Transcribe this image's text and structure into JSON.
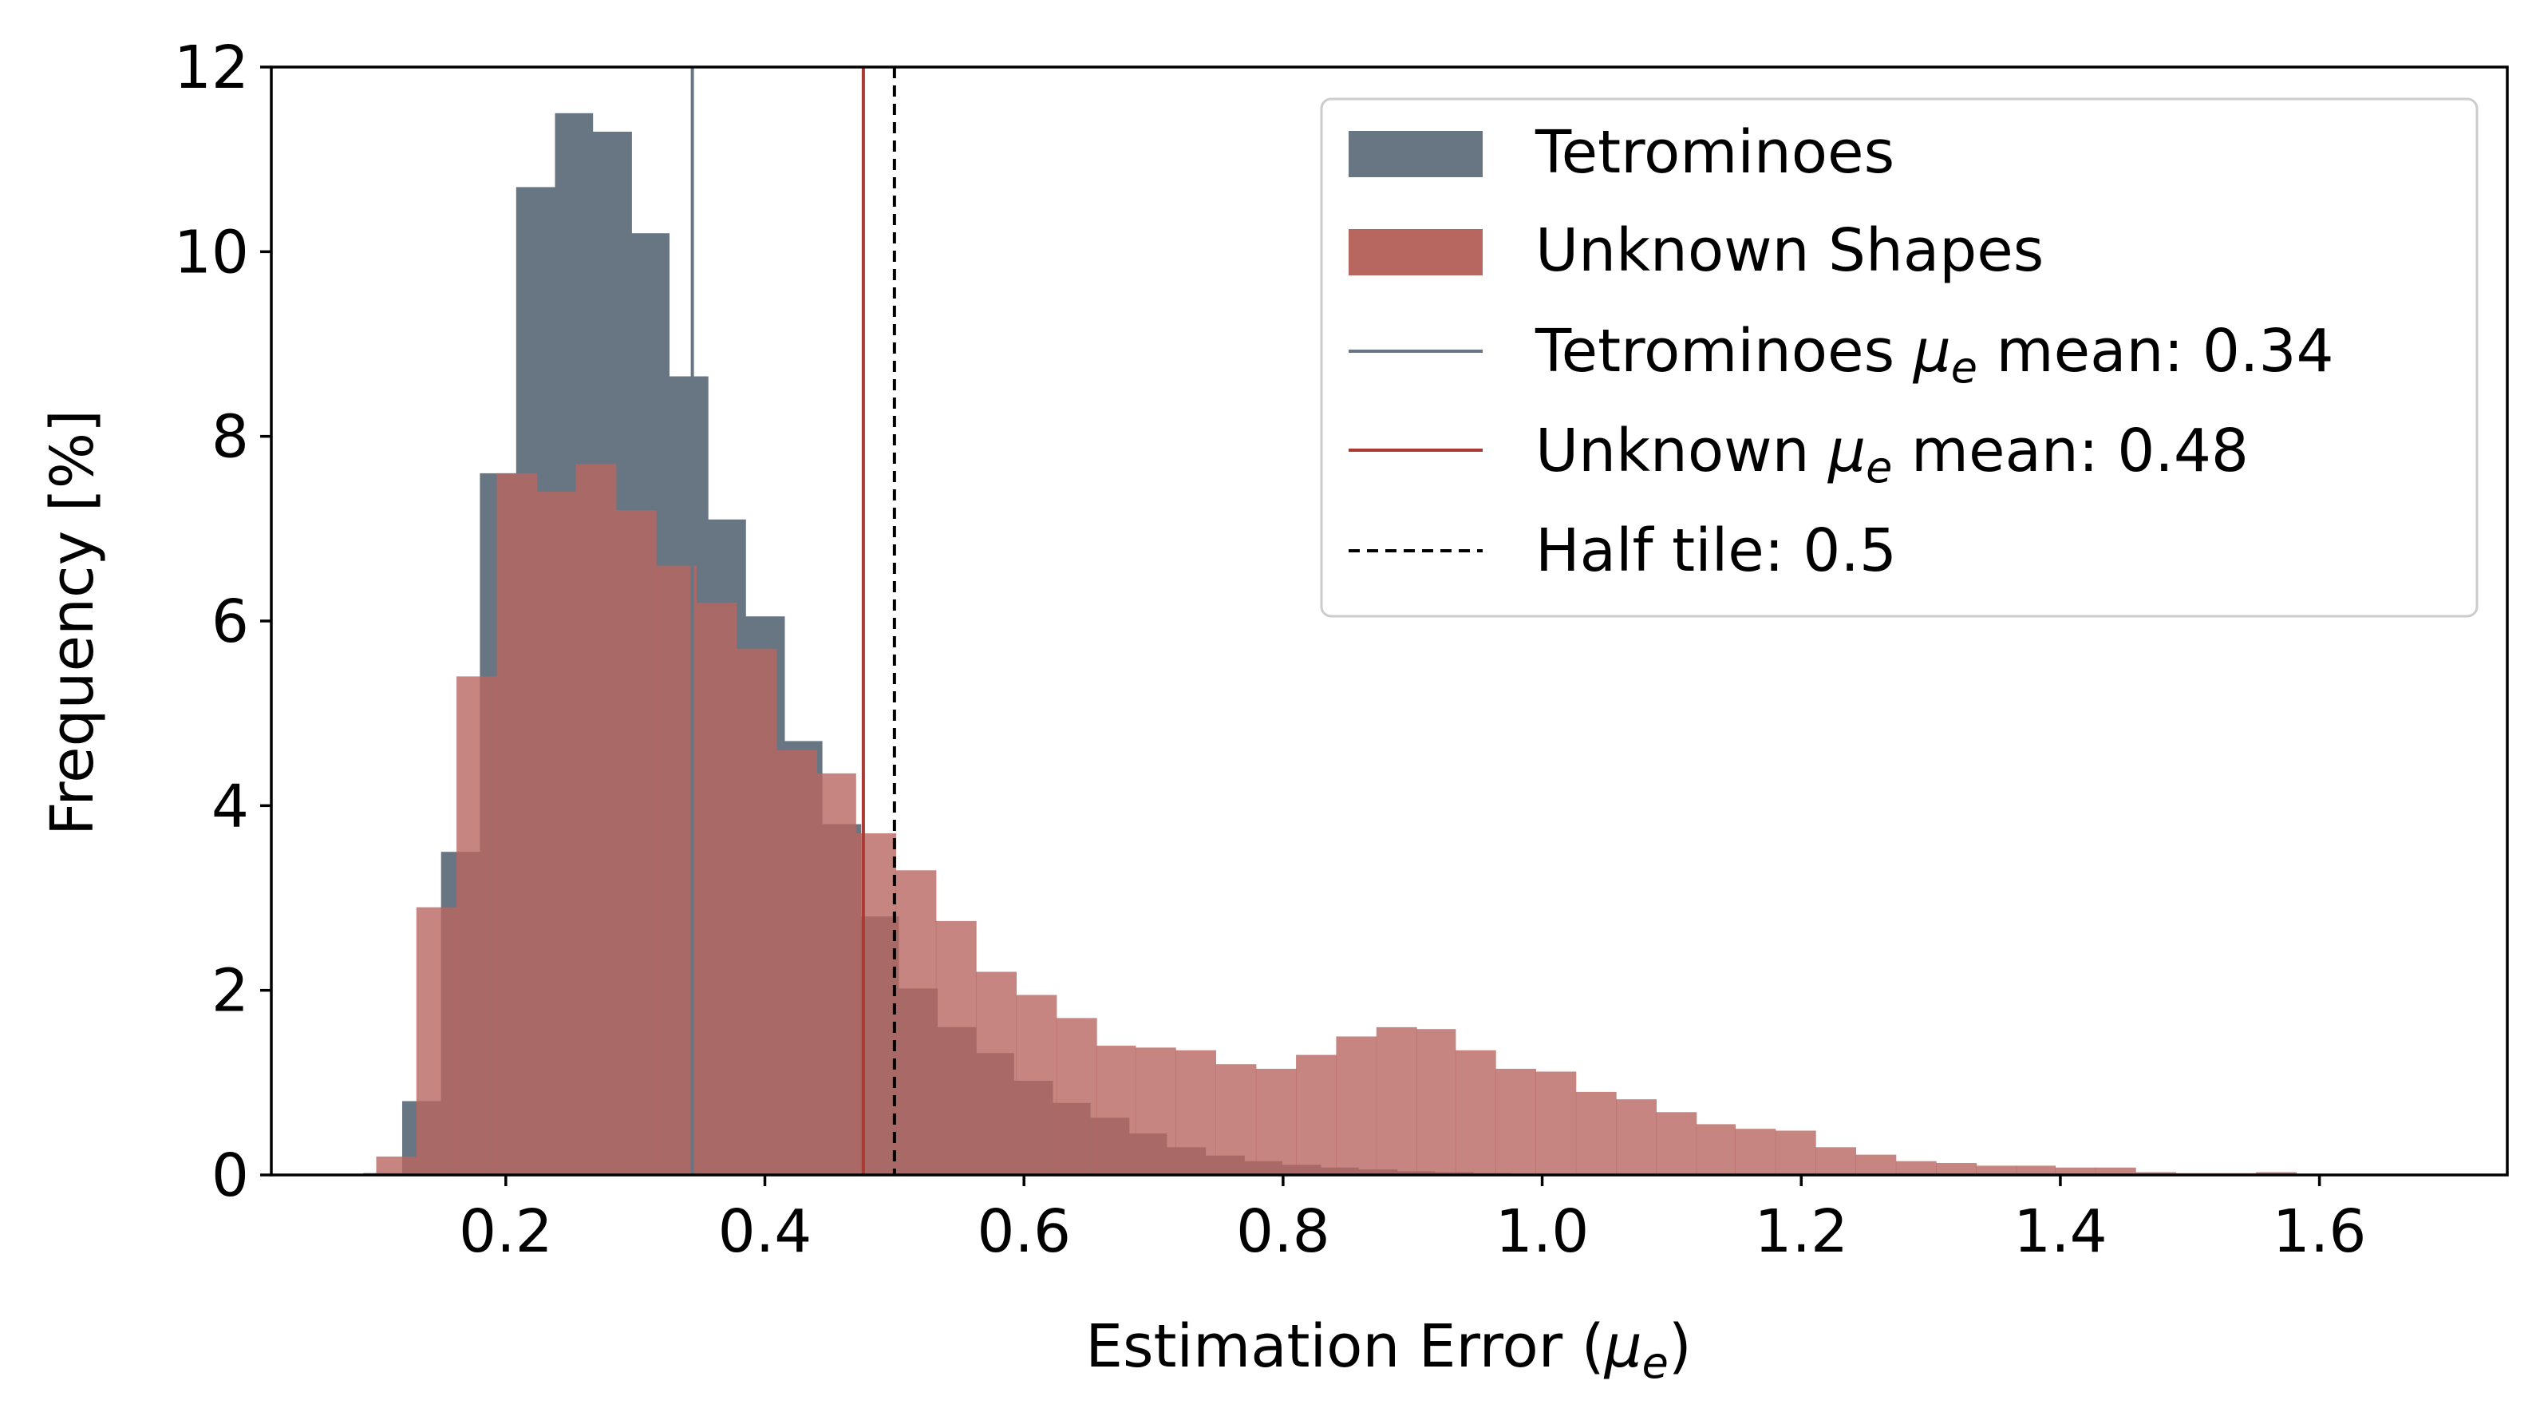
{
  "chart_data": {
    "type": "bar",
    "title": "",
    "xlabel": "Estimation Error (",
    "xlabel_symbol": "μ",
    "xlabel_sub": "e",
    "xlabel_close": ")",
    "ylabel": "Frequency [%]",
    "xlim": [
      0.019,
      1.745
    ],
    "ylim": [
      0,
      12
    ],
    "xticks": [
      0.2,
      0.4,
      0.6,
      0.8,
      1.0,
      1.2,
      1.4,
      1.6
    ],
    "xtick_labels": [
      "0.2",
      "0.4",
      "0.6",
      "0.8",
      "1.0",
      "1.2",
      "1.4",
      "1.6"
    ],
    "yticks": [
      0,
      2,
      4,
      6,
      8,
      10,
      12
    ],
    "ytick_labels": [
      "0",
      "2",
      "4",
      "6",
      "8",
      "10",
      "12"
    ],
    "grid": false,
    "legend_position": "top-right",
    "series": [
      {
        "name": "Tetrominoes",
        "color": "#687583",
        "bins": [
          [
            0.09,
            0.12,
            0.02
          ],
          [
            0.12,
            0.15,
            0.8
          ],
          [
            0.15,
            0.18,
            3.5
          ],
          [
            0.18,
            0.208,
            7.6
          ],
          [
            0.208,
            0.238,
            10.7
          ],
          [
            0.238,
            0.267,
            11.5
          ],
          [
            0.267,
            0.297,
            11.3
          ],
          [
            0.297,
            0.326,
            10.2
          ],
          [
            0.326,
            0.356,
            8.65
          ],
          [
            0.356,
            0.385,
            7.1
          ],
          [
            0.385,
            0.415,
            6.05
          ],
          [
            0.415,
            0.444,
            4.7
          ],
          [
            0.444,
            0.474,
            3.8
          ],
          [
            0.474,
            0.503,
            2.8
          ],
          [
            0.503,
            0.533,
            2.02
          ],
          [
            0.533,
            0.563,
            1.6
          ],
          [
            0.563,
            0.592,
            1.32
          ],
          [
            0.592,
            0.622,
            1.02
          ],
          [
            0.622,
            0.651,
            0.78
          ],
          [
            0.651,
            0.681,
            0.62
          ],
          [
            0.681,
            0.71,
            0.45
          ],
          [
            0.71,
            0.74,
            0.3
          ],
          [
            0.74,
            0.77,
            0.21
          ],
          [
            0.77,
            0.799,
            0.15
          ],
          [
            0.799,
            0.829,
            0.11
          ],
          [
            0.829,
            0.858,
            0.08
          ],
          [
            0.858,
            0.888,
            0.06
          ],
          [
            0.888,
            0.917,
            0.04
          ],
          [
            0.917,
            0.947,
            0.03
          ],
          [
            0.947,
            0.976,
            0.02
          ]
        ]
      },
      {
        "name": "Unknown Shapes",
        "color": "#b86660",
        "bins": [
          [
            0.1,
            0.131,
            0.2
          ],
          [
            0.131,
            0.162,
            2.9
          ],
          [
            0.162,
            0.193,
            5.4
          ],
          [
            0.193,
            0.224,
            7.6
          ],
          [
            0.224,
            0.254,
            7.4
          ],
          [
            0.254,
            0.285,
            7.7
          ],
          [
            0.285,
            0.316,
            7.2
          ],
          [
            0.316,
            0.347,
            6.6
          ],
          [
            0.347,
            0.378,
            6.2
          ],
          [
            0.378,
            0.409,
            5.7
          ],
          [
            0.409,
            0.44,
            4.6
          ],
          [
            0.44,
            0.47,
            4.35
          ],
          [
            0.47,
            0.501,
            3.7
          ],
          [
            0.501,
            0.532,
            3.3
          ],
          [
            0.532,
            0.563,
            2.75
          ],
          [
            0.563,
            0.594,
            2.2
          ],
          [
            0.594,
            0.625,
            1.95
          ],
          [
            0.625,
            0.656,
            1.7
          ],
          [
            0.656,
            0.686,
            1.4
          ],
          [
            0.686,
            0.717,
            1.38
          ],
          [
            0.717,
            0.748,
            1.35
          ],
          [
            0.748,
            0.779,
            1.2
          ],
          [
            0.779,
            0.81,
            1.15
          ],
          [
            0.81,
            0.841,
            1.3
          ],
          [
            0.841,
            0.872,
            1.5
          ],
          [
            0.872,
            0.903,
            1.6
          ],
          [
            0.903,
            0.933,
            1.58
          ],
          [
            0.933,
            0.964,
            1.35
          ],
          [
            0.964,
            0.995,
            1.15
          ],
          [
            0.995,
            1.026,
            1.12
          ],
          [
            1.026,
            1.057,
            0.9
          ],
          [
            1.057,
            1.088,
            0.82
          ],
          [
            1.088,
            1.119,
            0.68
          ],
          [
            1.119,
            1.149,
            0.55
          ],
          [
            1.149,
            1.18,
            0.5
          ],
          [
            1.18,
            1.211,
            0.48
          ],
          [
            1.211,
            1.242,
            0.3
          ],
          [
            1.242,
            1.273,
            0.22
          ],
          [
            1.273,
            1.304,
            0.15
          ],
          [
            1.304,
            1.335,
            0.13
          ],
          [
            1.335,
            1.366,
            0.1
          ],
          [
            1.366,
            1.396,
            0.1
          ],
          [
            1.396,
            1.427,
            0.08
          ],
          [
            1.427,
            1.458,
            0.08
          ],
          [
            1.458,
            1.489,
            0.03
          ],
          [
            1.489,
            1.52,
            0.02
          ],
          [
            1.52,
            1.551,
            0.02
          ],
          [
            1.551,
            1.582,
            0.03
          ]
        ]
      }
    ],
    "lines": [
      {
        "name": "Tetrominoes",
        "symbol": "μ",
        "sub": "e",
        "suffix": " mean: 0.34",
        "x": 0.344,
        "color": "#687583",
        "style": "solid"
      },
      {
        "name": "Unknown",
        "symbol": "μ",
        "sub": "e",
        "suffix": " mean: 0.48",
        "x": 0.476,
        "color": "#a93a34",
        "style": "solid"
      },
      {
        "name": "Half tile: 0.5",
        "symbol": "",
        "sub": "",
        "suffix": "",
        "x": 0.5,
        "color": "#000000",
        "style": "dashed"
      }
    ]
  }
}
